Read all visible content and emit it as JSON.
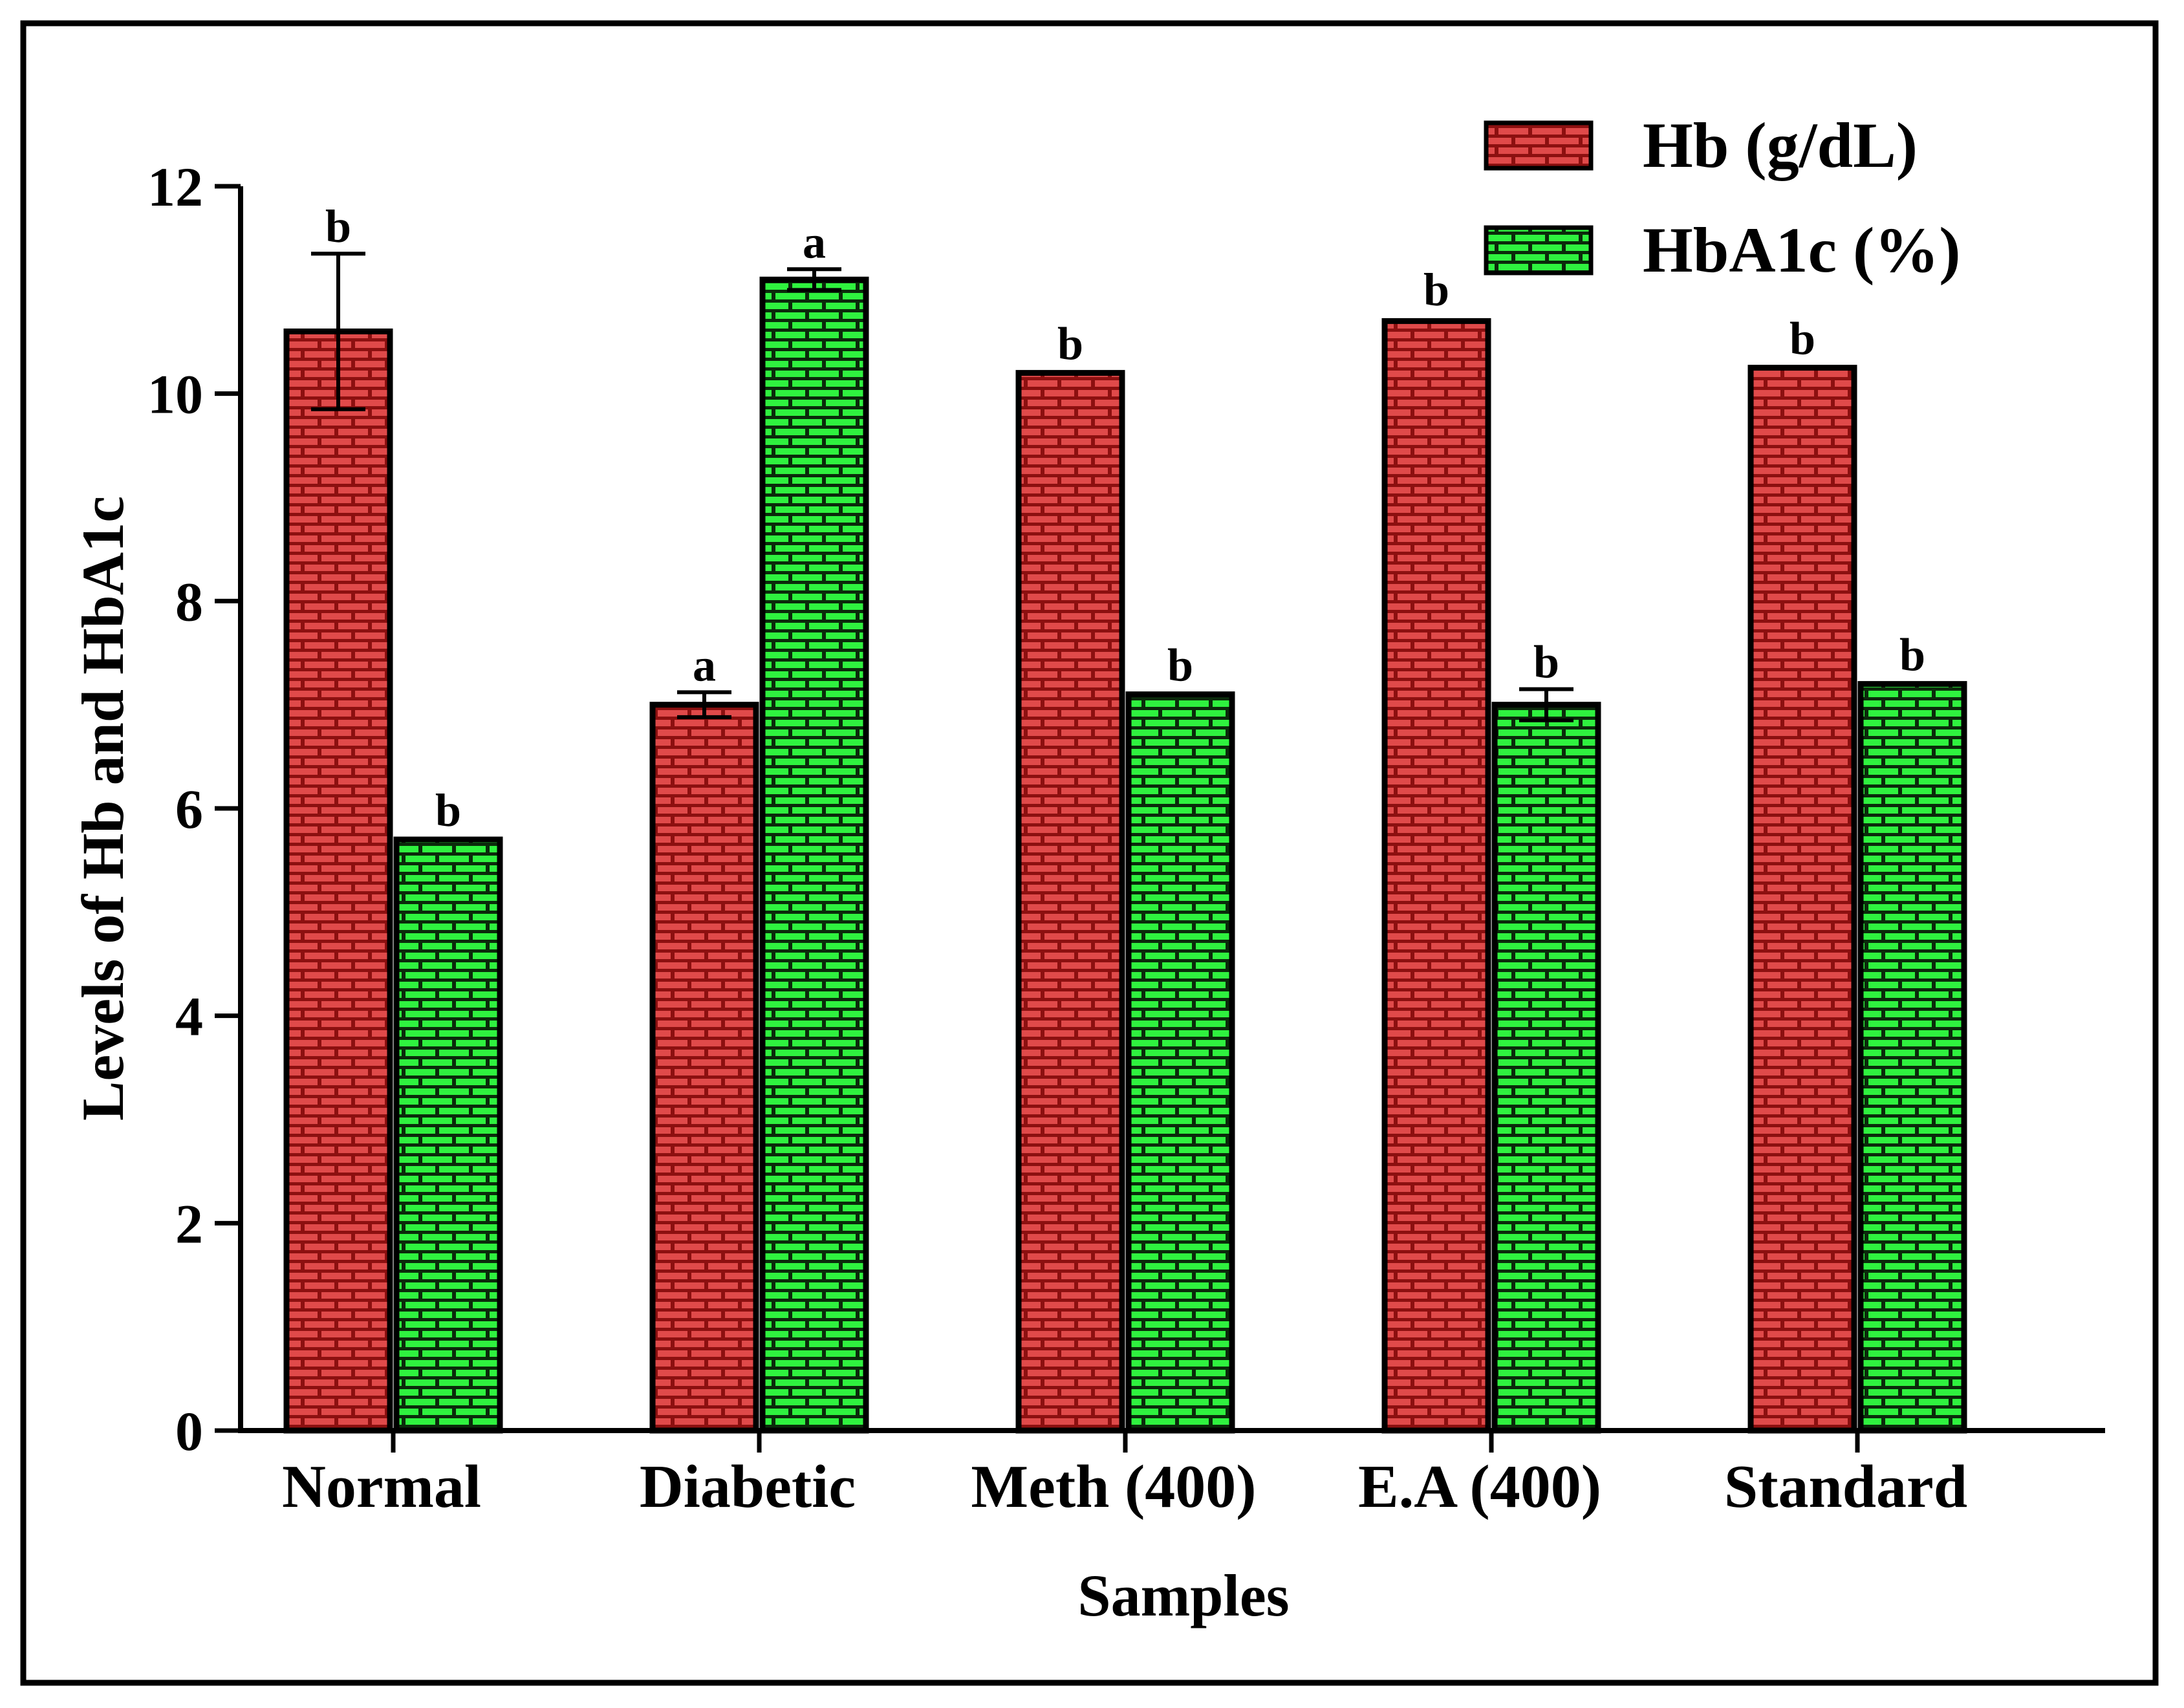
{
  "chart_data": {
    "type": "bar",
    "title": "",
    "xlabel": "Samples",
    "ylabel": "Levels of Hb and HbA1c",
    "ylim": [
      0,
      12
    ],
    "yticks": [
      0,
      2,
      4,
      6,
      8,
      10,
      12
    ],
    "categories": [
      "Normal",
      "Diabetic",
      "Meth (400)",
      "E.A (400)",
      "Standard"
    ],
    "series": [
      {
        "name": "Hb (g/dL)",
        "color": "#b01c1c",
        "values": [
          10.6,
          7.0,
          10.2,
          10.7,
          10.25
        ],
        "errors": [
          0.75,
          0.12,
          0.02,
          0.04,
          0.02
        ],
        "significance": [
          "b",
          "a",
          "b",
          "b",
          "b"
        ]
      },
      {
        "name": "HbA1c (%)",
        "color": "#22e23a",
        "values": [
          5.7,
          11.1,
          7.1,
          7.0,
          7.2
        ],
        "errors": [
          0.02,
          0.1,
          0.02,
          0.15,
          0.02
        ],
        "significance": [
          "b",
          "a",
          "b",
          "b",
          "b"
        ]
      }
    ],
    "legend_position": "top-right",
    "grid": false
  }
}
